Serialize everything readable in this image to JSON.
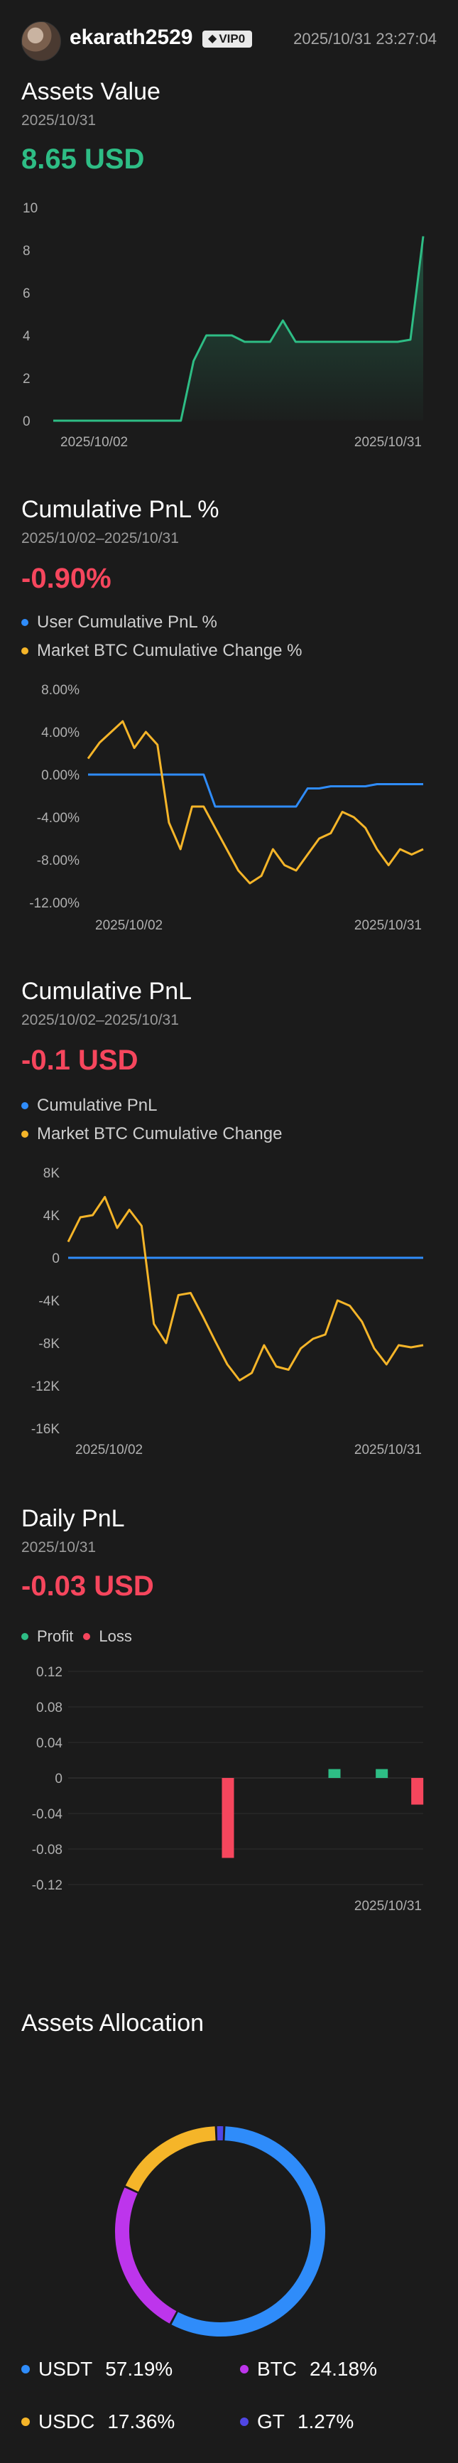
{
  "header": {
    "username": "ekarath2529",
    "vip": "VIP0",
    "timestamp": "2025/10/31 23:27:04"
  },
  "colors": {
    "green": "#2ebd85",
    "red": "#f6465d",
    "blue": "#2f8cfa",
    "orange": "#f5b529",
    "purple": "#bd35ec",
    "indigo": "#5046e4"
  },
  "assets_value": {
    "title": "Assets Value",
    "date": "2025/10/31",
    "value": "8.65 USD"
  },
  "cum_pnl_pct": {
    "title": "Cumulative PnL %",
    "date": "2025/10/02–2025/10/31",
    "value": "-0.90%",
    "legend_user": "User Cumulative PnL %",
    "legend_market": "Market BTC Cumulative Change %"
  },
  "cum_pnl": {
    "title": "Cumulative PnL",
    "date": "2025/10/02–2025/10/31",
    "value": "-0.1 USD",
    "legend_user": "Cumulative PnL",
    "legend_market": "Market BTC Cumulative Change"
  },
  "daily_pnl": {
    "title": "Daily PnL",
    "date": "2025/10/31",
    "value": "-0.03 USD",
    "legend_profit": "Profit",
    "legend_loss": "Loss"
  },
  "allocation": {
    "title": "Assets Allocation",
    "items": [
      {
        "name": "USDT",
        "pct": "57.19%",
        "color": "#2f8cfa"
      },
      {
        "name": "BTC",
        "pct": "24.18%",
        "color": "#bd35ec"
      },
      {
        "name": "USDC",
        "pct": "17.36%",
        "color": "#f5b529"
      },
      {
        "name": "GT",
        "pct": "1.27%",
        "color": "#5046e4"
      }
    ]
  },
  "chart_data": [
    {
      "type": "area",
      "title": "Assets Value",
      "x": [
        "2025/10/02",
        "2025/10/03",
        "2025/10/04",
        "2025/10/05",
        "2025/10/06",
        "2025/10/07",
        "2025/10/08",
        "2025/10/09",
        "2025/10/10",
        "2025/10/11",
        "2025/10/12",
        "2025/10/13",
        "2025/10/14",
        "2025/10/15",
        "2025/10/16",
        "2025/10/17",
        "2025/10/18",
        "2025/10/19",
        "2025/10/20",
        "2025/10/21",
        "2025/10/22",
        "2025/10/23",
        "2025/10/24",
        "2025/10/25",
        "2025/10/26",
        "2025/10/27",
        "2025/10/28",
        "2025/10/29",
        "2025/10/30",
        "2025/10/31"
      ],
      "series": [
        {
          "values": [
            0,
            0,
            0,
            0,
            0,
            0,
            0,
            0,
            0,
            0,
            0,
            2.8,
            4.0,
            4.0,
            4.0,
            3.7,
            3.7,
            3.7,
            4.7,
            3.7,
            3.7,
            3.7,
            3.7,
            3.7,
            3.7,
            3.7,
            3.7,
            3.7,
            3.8,
            8.65
          ],
          "color": "#2ebd85"
        }
      ],
      "ylim": [
        0,
        10
      ],
      "yticks": [
        "10",
        "8",
        "6",
        "4",
        "2",
        "0"
      ],
      "xtick_labels": [
        "2025/10/02",
        "2025/10/31"
      ]
    },
    {
      "type": "line",
      "title": "Cumulative PnL %",
      "x": [
        "2025/10/02",
        "2025/10/03",
        "2025/10/04",
        "2025/10/05",
        "2025/10/06",
        "2025/10/07",
        "2025/10/08",
        "2025/10/09",
        "2025/10/10",
        "2025/10/11",
        "2025/10/12",
        "2025/10/13",
        "2025/10/14",
        "2025/10/15",
        "2025/10/16",
        "2025/10/17",
        "2025/10/18",
        "2025/10/19",
        "2025/10/20",
        "2025/10/21",
        "2025/10/22",
        "2025/10/23",
        "2025/10/24",
        "2025/10/25",
        "2025/10/26",
        "2025/10/27",
        "2025/10/28",
        "2025/10/29",
        "2025/10/30",
        "2025/10/31"
      ],
      "series": [
        {
          "name": "User Cumulative PnL %",
          "color": "#2f8cfa",
          "values": [
            0,
            0,
            0,
            0,
            0,
            0,
            0,
            0,
            0,
            0,
            0,
            -3.0,
            -3.0,
            -3.0,
            -3.0,
            -3.0,
            -3.0,
            -3.0,
            -3.0,
            -1.3,
            -1.3,
            -1.1,
            -1.1,
            -1.1,
            -1.1,
            -0.9,
            -0.9,
            -0.9,
            -0.9,
            -0.9
          ]
        },
        {
          "name": "Market BTC Cumulative Change %",
          "color": "#f5b529",
          "values": [
            1.5,
            3.0,
            4.0,
            5.0,
            2.5,
            4.0,
            2.8,
            -4.5,
            -7.0,
            -3.0,
            -3.0,
            -5.0,
            -7.0,
            -9.0,
            -10.2,
            -9.5,
            -7.0,
            -8.5,
            -9.0,
            -7.5,
            -6.0,
            -5.5,
            -3.5,
            -4.0,
            -5.0,
            -7.0,
            -8.5,
            -7.0,
            -7.5,
            -7.0
          ]
        }
      ],
      "ylim": [
        -12,
        8
      ],
      "yticks": [
        "8.00%",
        "4.00%",
        "0.00%",
        "-4.00%",
        "-8.00%",
        "-12.00%"
      ],
      "xtick_labels": [
        "2025/10/02",
        "2025/10/31"
      ]
    },
    {
      "type": "line",
      "title": "Cumulative PnL",
      "x": [
        "2025/10/02",
        "2025/10/03",
        "2025/10/04",
        "2025/10/05",
        "2025/10/06",
        "2025/10/07",
        "2025/10/08",
        "2025/10/09",
        "2025/10/10",
        "2025/10/11",
        "2025/10/12",
        "2025/10/13",
        "2025/10/14",
        "2025/10/15",
        "2025/10/16",
        "2025/10/17",
        "2025/10/18",
        "2025/10/19",
        "2025/10/20",
        "2025/10/21",
        "2025/10/22",
        "2025/10/23",
        "2025/10/24",
        "2025/10/25",
        "2025/10/26",
        "2025/10/27",
        "2025/10/28",
        "2025/10/29",
        "2025/10/30",
        "2025/10/31"
      ],
      "series": [
        {
          "name": "Cumulative PnL",
          "color": "#2f8cfa",
          "values": [
            0,
            0,
            0,
            0,
            0,
            0,
            0,
            0,
            0,
            0,
            0,
            0,
            0,
            0,
            0,
            0,
            0,
            0,
            0,
            0,
            0,
            0,
            0,
            0,
            0,
            0,
            0,
            0,
            -0.1,
            -0.1
          ]
        },
        {
          "name": "Market BTC Cumulative Change",
          "color": "#f5b529",
          "values": [
            1500,
            3800,
            4000,
            5700,
            2800,
            4500,
            3000,
            -6200,
            -8000,
            -3500,
            -3300,
            -5500,
            -7800,
            -10000,
            -11500,
            -10800,
            -8200,
            -10200,
            -10500,
            -8500,
            -7600,
            -7200,
            -4000,
            -4500,
            -6000,
            -8500,
            -10000,
            -8200,
            -8400,
            -8200
          ]
        }
      ],
      "ylim": [
        -16000,
        8000
      ],
      "yticks": [
        "8K",
        "4K",
        "0",
        "-4K",
        "-8K",
        "-12K",
        "-16K"
      ],
      "xtick_labels": [
        "2025/10/02",
        "2025/10/31"
      ]
    },
    {
      "type": "bar",
      "title": "Daily PnL",
      "x": [
        "2025/10/02",
        "2025/10/03",
        "2025/10/04",
        "2025/10/05",
        "2025/10/06",
        "2025/10/07",
        "2025/10/08",
        "2025/10/09",
        "2025/10/10",
        "2025/10/11",
        "2025/10/12",
        "2025/10/13",
        "2025/10/14",
        "2025/10/15",
        "2025/10/16",
        "2025/10/17",
        "2025/10/18",
        "2025/10/19",
        "2025/10/20",
        "2025/10/21",
        "2025/10/22",
        "2025/10/23",
        "2025/10/24",
        "2025/10/25",
        "2025/10/26",
        "2025/10/27",
        "2025/10/28",
        "2025/10/29",
        "2025/10/30",
        "2025/10/31"
      ],
      "values": [
        0,
        0,
        0,
        0,
        0,
        0,
        0,
        0,
        0,
        0,
        0,
        0,
        0,
        -0.09,
        0,
        0,
        0,
        0,
        0,
        0,
        0,
        0,
        0.01,
        0,
        0,
        0,
        0.01,
        0,
        0,
        -0.03
      ],
      "ylim": [
        -0.12,
        0.12
      ],
      "yticks": [
        "0.12",
        "0.08",
        "0.04",
        "0",
        "-0.04",
        "-0.08",
        "-0.12"
      ],
      "xtick_labels": [
        "2025/10/31"
      ]
    },
    {
      "type": "pie",
      "title": "Assets Allocation",
      "labels": [
        "USDT",
        "BTC",
        "USDC",
        "GT"
      ],
      "values": [
        57.19,
        24.18,
        17.36,
        1.27
      ]
    }
  ]
}
